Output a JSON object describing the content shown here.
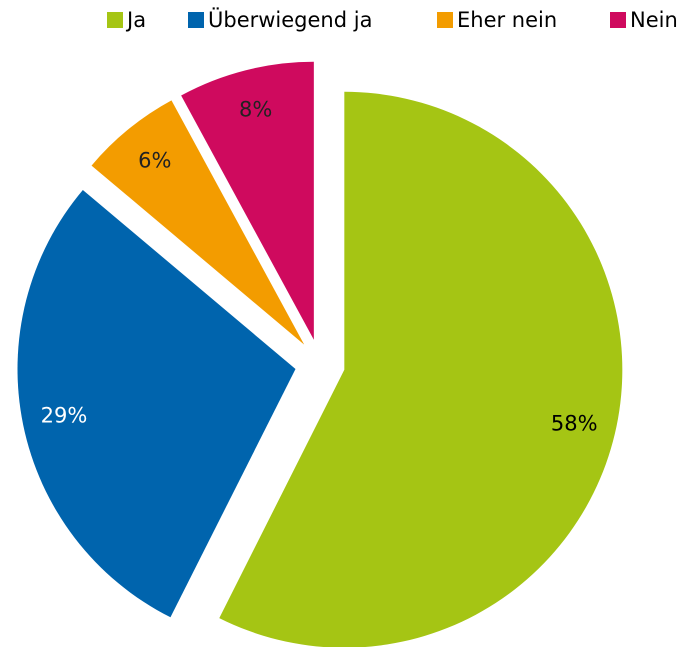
{
  "chart_data": {
    "type": "pie",
    "categories": [
      "Ja",
      "Überwiegend ja",
      "Eher nein",
      "Nein"
    ],
    "values": [
      58,
      29,
      6,
      8
    ],
    "value_labels": [
      "58%",
      "29%",
      "6%",
      "8%"
    ],
    "colors": [
      "#a5c514",
      "#0064ad",
      "#f39c00",
      "#cf0a5e"
    ],
    "legend": "top"
  }
}
